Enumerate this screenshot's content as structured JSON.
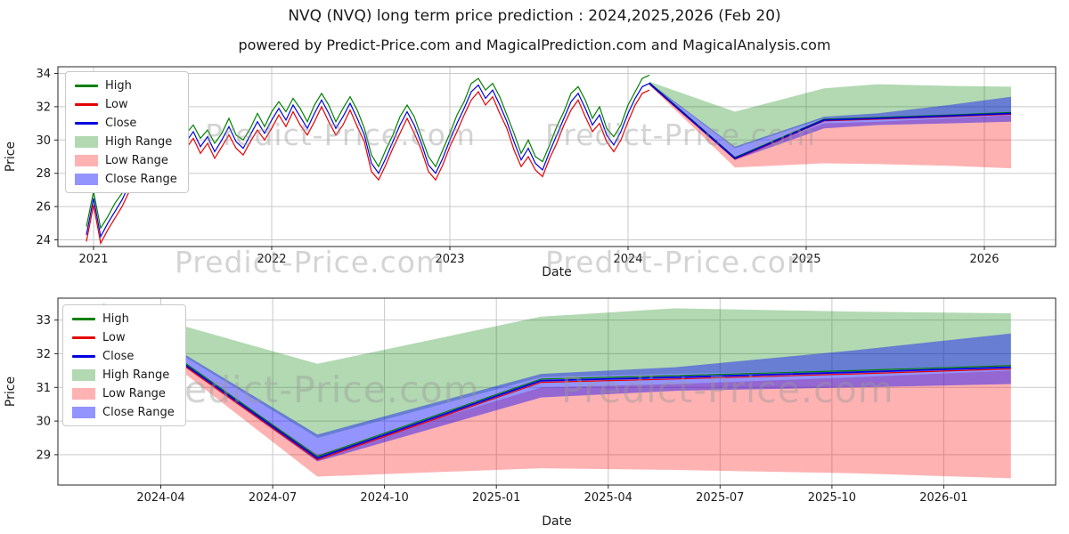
{
  "page": {
    "title": "NVQ (NVQ) long term price prediction : 2024,2025,2026 (Feb 20)",
    "subtitle": "powered by Predict-Price.com and MagicalPrediction.com and MagicalAnalysis.com",
    "watermark_text": "Predict-Price.com"
  },
  "colors": {
    "high": "#008000",
    "low": "#e60000",
    "close": "#0000e0",
    "high_range": "rgba(0,128,0,0.30)",
    "low_range": "rgba(255,0,0,0.30)",
    "close_range": "rgba(0,0,255,0.42)",
    "grid": "#c9c9c9",
    "frame": "#262626",
    "watermark": "#9a9a9a"
  },
  "legend": [
    "High",
    "Low",
    "Close",
    "High Range",
    "Low Range",
    "Close Range"
  ],
  "chart_data": [
    {
      "type": "line",
      "name": "long-term-price-chart",
      "xlabel": "Date",
      "ylabel": "Price",
      "xlim": [
        2020.8,
        2026.4
      ],
      "ylim": [
        23.6,
        34.4
      ],
      "xticks": [
        2021,
        2022,
        2023,
        2024,
        2025,
        2026
      ],
      "xtick_labels": [
        "2021",
        "2022",
        "2023",
        "2024",
        "2025",
        "2026"
      ],
      "yticks": [
        24,
        26,
        28,
        30,
        32,
        34
      ],
      "series_shown": [
        "history",
        "forecast"
      ],
      "series": {
        "history": {
          "t_start": 2020.96,
          "t_step": 0.04,
          "high": [
            24.8,
            26.9,
            24.7,
            25.4,
            26.2,
            26.8,
            27.8,
            28.7,
            29.9,
            31.0,
            32.4,
            31.4,
            30.8,
            31.3,
            30.4,
            30.9,
            30.1,
            30.6,
            29.8,
            30.4,
            31.3,
            30.3,
            30.0,
            30.7,
            31.6,
            30.8,
            31.7,
            32.3,
            31.7,
            32.5,
            31.9,
            31.1,
            32.1,
            32.8,
            32.1,
            31.1,
            31.9,
            32.6,
            31.8,
            30.7,
            29.1,
            28.4,
            29.4,
            30.3,
            31.4,
            32.1,
            31.4,
            30.2,
            29.0,
            28.4,
            29.4,
            30.4,
            31.5,
            32.3,
            33.4,
            33.7,
            33.0,
            33.4,
            32.6,
            31.5,
            30.4,
            29.2,
            30.0,
            29.0,
            28.7,
            29.7,
            30.8,
            31.7,
            32.8,
            33.2,
            32.4,
            31.3,
            32.0,
            30.7,
            30.2,
            30.9,
            32.1,
            32.9,
            33.7,
            33.9
          ],
          "low": [
            23.9,
            26.1,
            23.8,
            24.6,
            25.3,
            26.0,
            26.9,
            27.9,
            29.0,
            30.2,
            31.4,
            30.6,
            29.9,
            30.5,
            29.5,
            30.1,
            29.2,
            29.8,
            28.9,
            29.6,
            30.3,
            29.5,
            29.1,
            29.9,
            30.6,
            30.0,
            30.7,
            31.5,
            30.8,
            31.7,
            30.9,
            30.3,
            31.1,
            32.0,
            31.1,
            30.3,
            30.9,
            31.8,
            30.8,
            29.9,
            28.1,
            27.6,
            28.5,
            29.5,
            30.4,
            31.3,
            30.4,
            29.4,
            28.1,
            27.6,
            28.5,
            29.6,
            30.5,
            31.5,
            32.4,
            32.9,
            32.1,
            32.6,
            31.6,
            30.7,
            29.4,
            28.4,
            29.0,
            28.2,
            27.8,
            28.9,
            29.8,
            30.9,
            31.8,
            32.4,
            31.4,
            30.5,
            31.0,
            29.9,
            29.3,
            30.0,
            31.1,
            32.1,
            32.8,
            33.0
          ],
          "close": [
            24.3,
            26.5,
            24.2,
            25.0,
            25.7,
            26.4,
            27.3,
            28.3,
            29.4,
            30.6,
            31.9,
            31.0,
            30.3,
            30.9,
            29.9,
            30.5,
            29.6,
            30.2,
            29.3,
            30.0,
            30.8,
            29.9,
            29.5,
            30.3,
            31.1,
            30.4,
            31.2,
            31.9,
            31.2,
            32.1,
            31.4,
            30.7,
            31.6,
            32.4,
            31.6,
            30.7,
            31.4,
            32.2,
            31.3,
            30.3,
            28.6,
            28.0,
            28.9,
            29.9,
            30.9,
            31.7,
            30.9,
            29.8,
            28.5,
            28.0,
            28.9,
            30.0,
            31.0,
            31.9,
            32.9,
            33.3,
            32.5,
            33.0,
            32.1,
            31.1,
            29.9,
            28.8,
            29.5,
            28.6,
            28.2,
            29.3,
            30.3,
            31.3,
            32.3,
            32.8,
            31.9,
            30.9,
            31.5,
            30.3,
            29.7,
            30.5,
            31.6,
            32.5,
            33.2,
            33.4
          ]
        },
        "forecast": {
          "t": [
            2024.12,
            2024.6,
            2025.1,
            2025.4,
            2025.8,
            2026.15
          ],
          "high": [
            33.45,
            28.95,
            31.25,
            31.35,
            31.5,
            31.65
          ],
          "low": [
            33.35,
            28.85,
            31.15,
            31.25,
            31.4,
            31.55
          ],
          "close": [
            33.4,
            28.9,
            31.2,
            31.3,
            31.45,
            31.6
          ],
          "bands": {
            "high_range": {
              "top": [
                33.5,
                31.7,
                33.1,
                33.35,
                33.25,
                33.2
              ],
              "bottom": [
                33.4,
                29.5,
                31.3,
                31.4,
                31.5,
                31.6
              ]
            },
            "low_range": {
              "top": [
                33.35,
                29.0,
                31.0,
                31.1,
                31.3,
                31.5
              ],
              "bottom": [
                33.3,
                28.35,
                28.6,
                28.55,
                28.45,
                28.3
              ]
            },
            "close_range": {
              "top": [
                33.45,
                29.6,
                31.4,
                31.6,
                32.1,
                32.6
              ],
              "bottom": [
                33.35,
                28.8,
                30.7,
                30.9,
                31.0,
                31.1
              ]
            }
          }
        }
      }
    },
    {
      "type": "line",
      "name": "forecast-detail-chart",
      "xlabel": "Date",
      "ylabel": "Price",
      "xlim": [
        2024.02,
        2026.25
      ],
      "ylim": [
        28.1,
        33.65
      ],
      "xticks": [
        2024.25,
        2024.5,
        2024.75,
        2025.0,
        2025.25,
        2025.5,
        2025.75,
        2026.0
      ],
      "xtick_labels": [
        "2024-04",
        "2024-07",
        "2024-10",
        "2025-01",
        "2025-04",
        "2025-07",
        "2025-10",
        "2026-01"
      ],
      "yticks": [
        29,
        30,
        31,
        32,
        33
      ],
      "series_shown": [
        "forecast"
      ],
      "series_from": 0
    }
  ]
}
